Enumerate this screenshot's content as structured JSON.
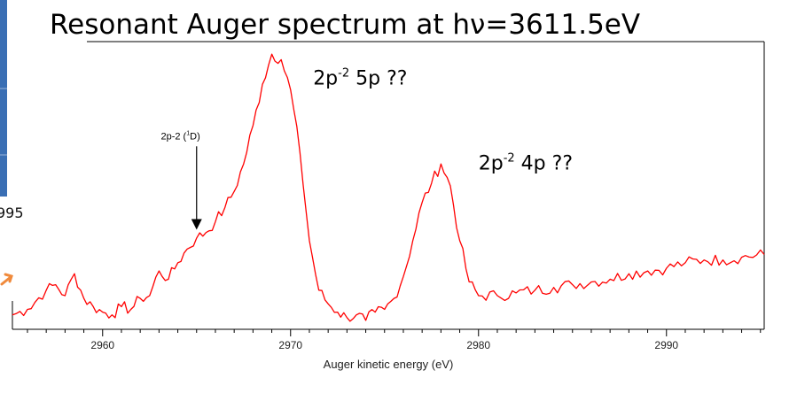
{
  "title": "Resonant Auger spectrum at hν=3611.5eV",
  "edge_number": "995",
  "chart_data": {
    "type": "line",
    "title": "Resonant Auger spectrum at hν=3611.5eV",
    "xlabel": "Auger kinetic energy (eV)",
    "ylabel": "",
    "xlim": [
      2955.2,
      2995.2
    ],
    "ylim": [
      0,
      1
    ],
    "grid": false,
    "xticks": [
      2960,
      2970,
      2980,
      2990
    ],
    "xtick_labels": [
      "2960",
      "2970",
      "2980",
      "2990"
    ],
    "series": [
      {
        "color": "#ff0000",
        "x": [
          2955.2,
          2956.0,
          2957.0,
          2957.5,
          2958.0,
          2958.5,
          2959.0,
          2959.5,
          2960.0,
          2960.5,
          2961.0,
          2961.5,
          2962.0,
          2962.5,
          2963.0,
          2963.5,
          2964.0,
          2964.5,
          2965.0,
          2965.5,
          2966.0,
          2966.5,
          2967.0,
          2967.5,
          2968.0,
          2968.5,
          2969.0,
          2969.5,
          2970.0,
          2970.5,
          2971.0,
          2971.5,
          2972.0,
          2972.5,
          2973.0,
          2973.5,
          2974.0,
          2974.5,
          2975.0,
          2975.5,
          2976.0,
          2976.5,
          2977.0,
          2977.5,
          2978.0,
          2978.5,
          2979.0,
          2979.5,
          2980.0,
          2981.0,
          2982.0,
          2983.0,
          2984.0,
          2985.0,
          2986.0,
          2987.0,
          2988.0,
          2989.0,
          2990.0,
          2991.0,
          2992.0,
          2993.0,
          2994.0,
          2995.2
        ],
        "values": [
          0.03,
          0.05,
          0.12,
          0.14,
          0.1,
          0.18,
          0.09,
          0.06,
          0.04,
          0.03,
          0.06,
          0.05,
          0.09,
          0.1,
          0.19,
          0.16,
          0.22,
          0.27,
          0.31,
          0.33,
          0.37,
          0.42,
          0.48,
          0.58,
          0.72,
          0.87,
          0.98,
          0.96,
          0.85,
          0.62,
          0.3,
          0.12,
          0.07,
          0.04,
          0.02,
          0.03,
          0.01,
          0.04,
          0.05,
          0.09,
          0.17,
          0.3,
          0.44,
          0.51,
          0.58,
          0.5,
          0.3,
          0.15,
          0.1,
          0.1,
          0.11,
          0.12,
          0.13,
          0.14,
          0.15,
          0.16,
          0.18,
          0.19,
          0.2,
          0.22,
          0.23,
          0.23,
          0.24,
          0.25
        ]
      }
    ],
    "annotations": [
      {
        "id": "a1",
        "x": 2971.2,
        "y": 0.87,
        "main": "2p",
        "sup": "-2",
        "rest": " 5p ??"
      },
      {
        "id": "a2",
        "x": 2980.0,
        "y": 0.56,
        "main": "2p",
        "sup": "-2",
        "rest": " 4p ??"
      },
      {
        "id": "a3",
        "x": 2963.1,
        "y": 0.67,
        "main": "2p-2 (",
        "sup": "1",
        "rest": "D)",
        "arrow_to_x": 2965.0,
        "arrow_to_y": 0.33
      }
    ]
  }
}
